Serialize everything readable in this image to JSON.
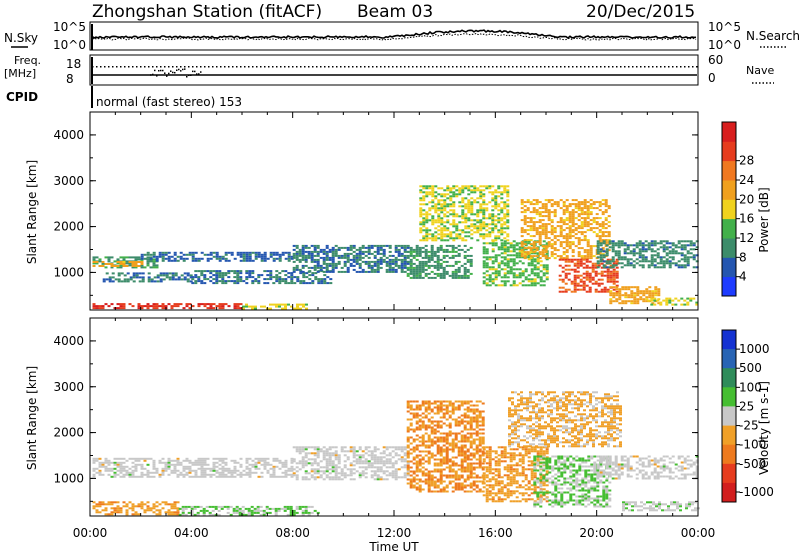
{
  "header": {
    "station": "Zhongshan Station (fitACF)",
    "beam": "Beam 03",
    "date": "20/Dec/2015"
  },
  "noise_panel": {
    "left_label": "N.Sky",
    "left_ticks": [
      "10^5",
      "10^0"
    ],
    "right_label": "N.Search",
    "right_ticks": [
      "10^5",
      "10^0"
    ]
  },
  "freq_panel": {
    "left_label_1": "Freq.",
    "left_label_2": "[MHz]",
    "left_ticks": [
      "18",
      "8"
    ],
    "right_label": "Nave",
    "right_ticks": [
      "60",
      "0"
    ]
  },
  "cpid": {
    "label": "CPID",
    "mode": "normal (fast stereo) 153"
  },
  "colors": {
    "power_scale": [
      "#1e3cff",
      "#2456b0",
      "#3c8c6a",
      "#42b04a",
      "#f0d21e",
      "#f0a01e",
      "#f07820",
      "#e63c1e",
      "#d81e1e"
    ],
    "velocity_scale": [
      "#1432d2",
      "#2864b4",
      "#2f8c5a",
      "#46be32",
      "#c8c8c8",
      "#f0a028",
      "#ee7a1e",
      "#e63c1e",
      "#d21e1e"
    ]
  },
  "chart_data": [
    {
      "type": "heatmap",
      "title": "",
      "xlabel": "Time UT",
      "ylabel": "Slant Range [km]",
      "x_ticks": [
        "00:00",
        "04:00",
        "08:00",
        "12:00",
        "16:00",
        "20:00",
        "00:00"
      ],
      "y_ticks": [
        "1000",
        "2000",
        "3000",
        "4000"
      ],
      "xlim_hours": [
        0,
        24
      ],
      "ylim": [
        180,
        4500
      ],
      "colorbar": {
        "label": "Power [dB]",
        "ticks": [
          "4",
          "8",
          "12",
          "16",
          "20",
          "24",
          "28"
        ],
        "range": [
          0,
          30
        ]
      },
      "regions": [
        {
          "t0": 0.1,
          "t1": 6.0,
          "r0": 200,
          "r1": 330,
          "value": 26
        },
        {
          "t0": 6.0,
          "t1": 8.5,
          "r0": 200,
          "r1": 320,
          "value": 14
        },
        {
          "t0": 0.1,
          "t1": 2.7,
          "r0": 1100,
          "r1": 1350,
          "value": 10
        },
        {
          "t0": 0.1,
          "t1": 2.0,
          "r0": 1150,
          "r1": 1250,
          "value": 18
        },
        {
          "t0": 2.0,
          "t1": 8.0,
          "r0": 1250,
          "r1": 1450,
          "value": 6
        },
        {
          "t0": 0.5,
          "t1": 4.0,
          "r0": 800,
          "r1": 1000,
          "value": 7
        },
        {
          "t0": 4.0,
          "t1": 9.5,
          "r0": 750,
          "r1": 1050,
          "value": 7
        },
        {
          "t0": 8.0,
          "t1": 12.5,
          "r0": 1000,
          "r1": 1600,
          "value": 7
        },
        {
          "t0": 12.5,
          "t1": 15.0,
          "r0": 900,
          "r1": 1600,
          "value": 9
        },
        {
          "t0": 13.0,
          "t1": 16.5,
          "r0": 1700,
          "r1": 2900,
          "value": 14
        },
        {
          "t0": 15.5,
          "t1": 18.0,
          "r0": 700,
          "r1": 1700,
          "value": 12
        },
        {
          "t0": 17.0,
          "t1": 20.5,
          "r0": 1300,
          "r1": 2600,
          "value": 18
        },
        {
          "t0": 18.5,
          "t1": 20.8,
          "r0": 600,
          "r1": 1300,
          "value": 24
        },
        {
          "t0": 20.5,
          "t1": 22.5,
          "r0": 350,
          "r1": 700,
          "value": 18
        },
        {
          "t0": 20.0,
          "t1": 24.0,
          "r0": 1100,
          "r1": 1700,
          "value": 8
        },
        {
          "t0": 22.0,
          "t1": 24.0,
          "r0": 300,
          "r1": 450,
          "value": 14
        }
      ]
    },
    {
      "type": "heatmap",
      "title": "",
      "xlabel": "Time UT",
      "ylabel": "Slant Range [km]",
      "x_ticks": [
        "00:00",
        "04:00",
        "08:00",
        "12:00",
        "16:00",
        "20:00",
        "00:00"
      ],
      "y_ticks": [
        "1000",
        "2000",
        "3000",
        "4000"
      ],
      "xlim_hours": [
        0,
        24
      ],
      "ylim": [
        180,
        4500
      ],
      "colorbar": {
        "label": "Velocity [m s-1]",
        "ticks": [
          "1000",
          "500",
          "100",
          "25",
          "-25",
          "-100",
          "-500",
          "-1000"
        ],
        "range": [
          -1200,
          1200
        ]
      },
      "regions": [
        {
          "t0": 0.1,
          "t1": 3.5,
          "r0": 200,
          "r1": 500,
          "value": -300
        },
        {
          "t0": 3.5,
          "t1": 9.0,
          "r0": 200,
          "r1": 400,
          "value": 150
        },
        {
          "t0": 0.1,
          "t1": 8.0,
          "r0": 1050,
          "r1": 1450,
          "value": 0
        },
        {
          "t0": 8.0,
          "t1": 12.5,
          "r0": 1000,
          "r1": 1700,
          "value": 0
        },
        {
          "t0": 12.5,
          "t1": 15.5,
          "r0": 700,
          "r1": 2700,
          "value": -400
        },
        {
          "t0": 15.5,
          "t1": 18.0,
          "r0": 500,
          "r1": 1700,
          "value": -300
        },
        {
          "t0": 17.5,
          "t1": 20.5,
          "r0": 400,
          "r1": 1500,
          "value": 150
        },
        {
          "t0": 16.5,
          "t1": 21.0,
          "r0": 1700,
          "r1": 2900,
          "value": -200
        },
        {
          "t0": 20.0,
          "t1": 24.0,
          "r0": 1000,
          "r1": 1500,
          "value": 0
        },
        {
          "t0": 21.0,
          "t1": 24.0,
          "r0": 300,
          "r1": 500,
          "value": 40
        }
      ]
    }
  ]
}
